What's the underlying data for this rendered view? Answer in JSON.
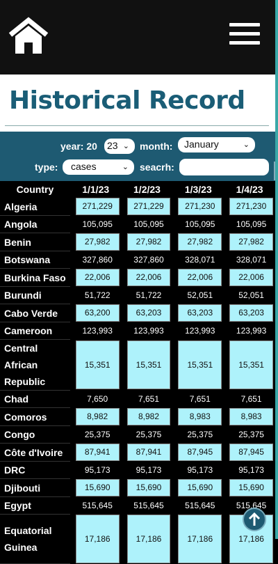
{
  "header": {
    "home_icon": "home-icon",
    "menu_icon": "hamburger-menu-icon"
  },
  "page": {
    "title": "Historical Record"
  },
  "filters": {
    "year_label": "year: 20",
    "year_value": "23",
    "month_label": "month:",
    "month_value": "January",
    "type_label": "type:",
    "type_value": "cases",
    "search_label": "seacrh:",
    "search_value": ""
  },
  "table": {
    "headers": [
      "Country",
      "1/1/23",
      "1/2/23",
      "1/3/23",
      "1/4/23"
    ],
    "rows": [
      {
        "country": "Algeria",
        "values": [
          "271,229",
          "271,229",
          "271,230",
          "271,230"
        ],
        "highlight": true
      },
      {
        "country": "Angola",
        "values": [
          "105,095",
          "105,095",
          "105,095",
          "105,095"
        ],
        "highlight": false
      },
      {
        "country": "Benin",
        "values": [
          "27,982",
          "27,982",
          "27,982",
          "27,982"
        ],
        "highlight": true
      },
      {
        "country": "Botswana",
        "values": [
          "327,860",
          "327,860",
          "328,071",
          "328,071"
        ],
        "highlight": false
      },
      {
        "country": "Burkina Faso",
        "values": [
          "22,006",
          "22,006",
          "22,006",
          "22,006"
        ],
        "highlight": true
      },
      {
        "country": "Burundi",
        "values": [
          "51,722",
          "51,722",
          "52,051",
          "52,051"
        ],
        "highlight": false
      },
      {
        "country": "Cabo Verde",
        "values": [
          "63,200",
          "63,203",
          "63,203",
          "63,203"
        ],
        "highlight": true
      },
      {
        "country": "Cameroon",
        "values": [
          "123,993",
          "123,993",
          "123,993",
          "123,993"
        ],
        "highlight": false
      },
      {
        "country": "Central African Republic",
        "values": [
          "15,351",
          "15,351",
          "15,351",
          "15,351"
        ],
        "highlight": true,
        "tall": true
      },
      {
        "country": "Chad",
        "values": [
          "7,650",
          "7,651",
          "7,651",
          "7,651"
        ],
        "highlight": false
      },
      {
        "country": "Comoros",
        "values": [
          "8,982",
          "8,982",
          "8,983",
          "8,983"
        ],
        "highlight": true
      },
      {
        "country": "Congo",
        "values": [
          "25,375",
          "25,375",
          "25,375",
          "25,375"
        ],
        "highlight": false
      },
      {
        "country": "Côte d'Ivoire",
        "values": [
          "87,941",
          "87,941",
          "87,945",
          "87,945"
        ],
        "highlight": true
      },
      {
        "country": "DRC",
        "values": [
          "95,173",
          "95,173",
          "95,173",
          "95,173"
        ],
        "highlight": false
      },
      {
        "country": "Djibouti",
        "values": [
          "15,690",
          "15,690",
          "15,690",
          "15,690"
        ],
        "highlight": true
      },
      {
        "country": "Egypt",
        "values": [
          "515,645",
          "515,645",
          "515,645",
          "515,645"
        ],
        "highlight": false
      },
      {
        "country": "Equatorial Guinea",
        "values": [
          "17,186",
          "17,186",
          "17,186",
          "17,186"
        ],
        "highlight": true,
        "tall": true
      }
    ]
  },
  "scroll_top_icon": "arrow-up-icon"
}
